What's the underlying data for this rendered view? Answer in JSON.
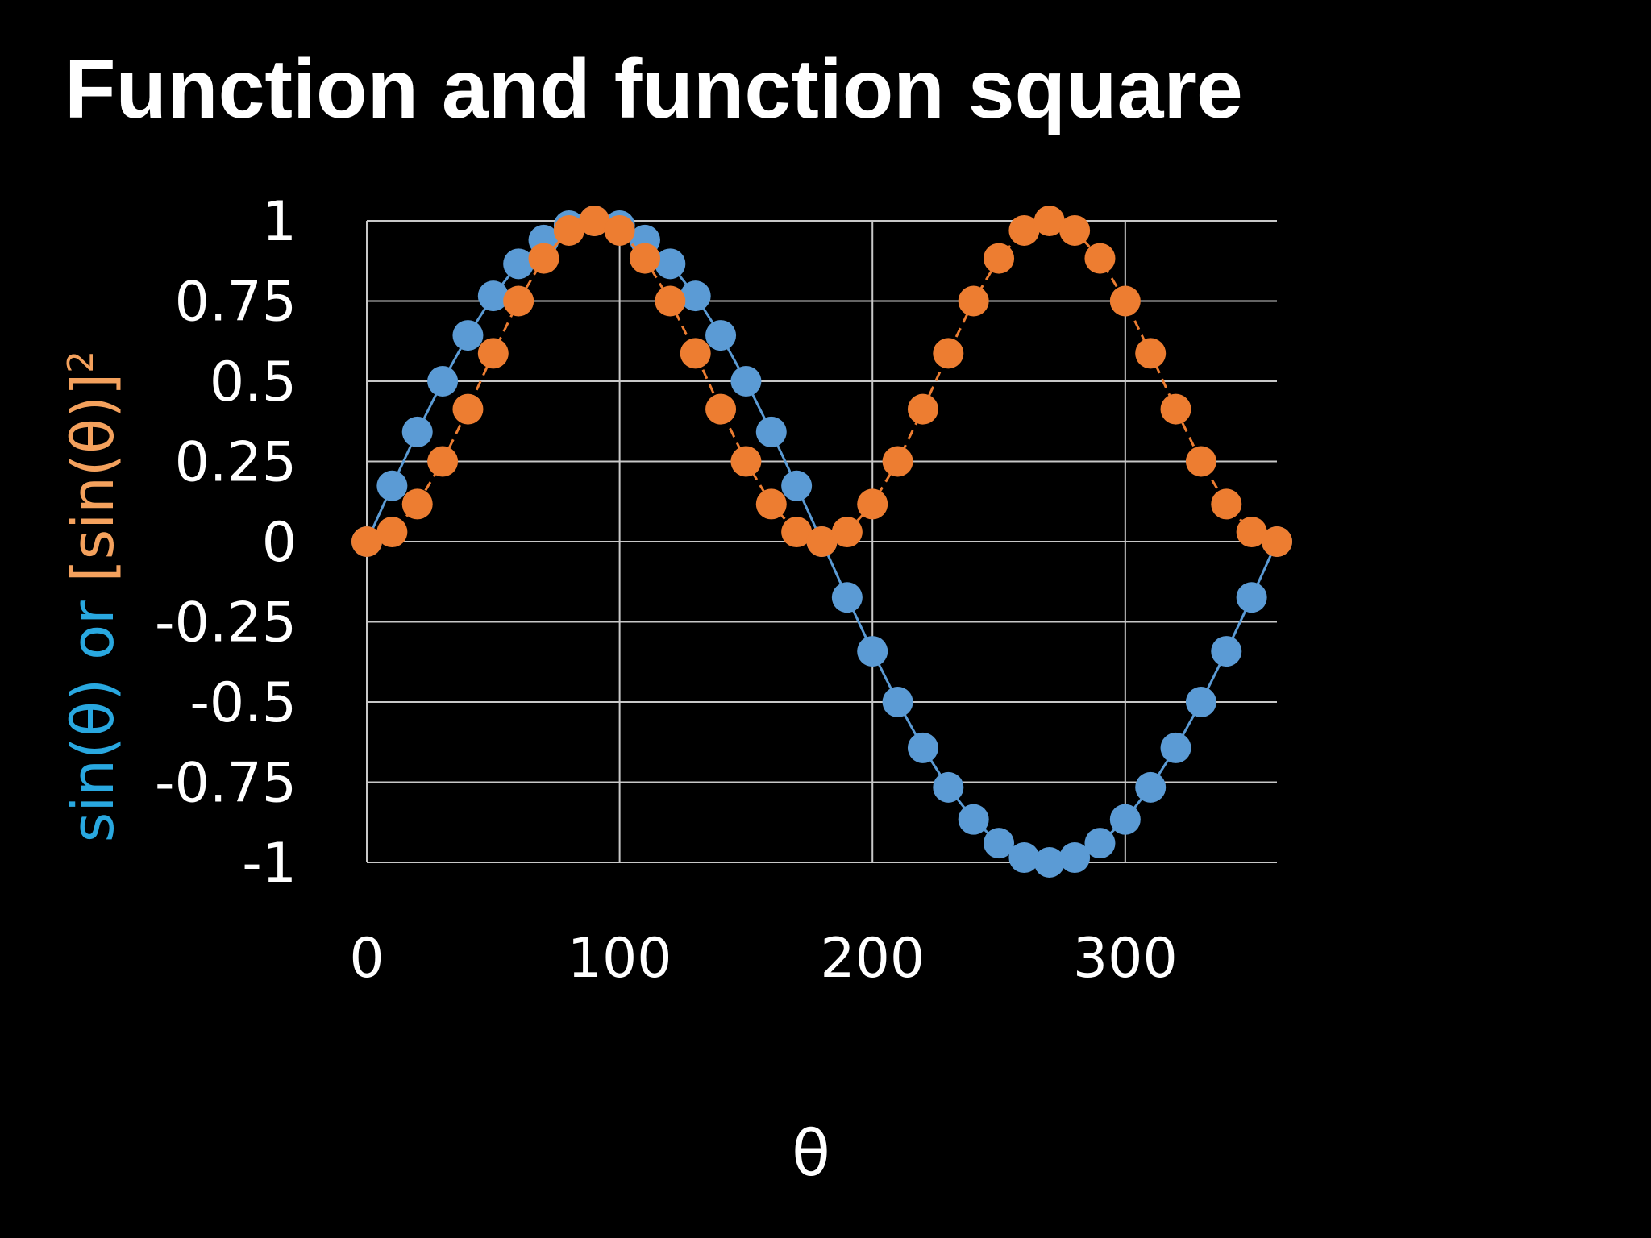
{
  "chart_data": {
    "type": "line",
    "title": "Function and function square",
    "xlabel": "θ",
    "ylabel_parts": [
      {
        "text": "sin(θ) or ",
        "color": "#29a8e0"
      },
      {
        "text": "[sin(θ)]",
        "color": "#f4a15d"
      },
      {
        "text": "2",
        "color": "#f4a15d",
        "superscript": true
      }
    ],
    "x": [
      0,
      10,
      20,
      30,
      40,
      50,
      60,
      70,
      80,
      90,
      100,
      110,
      120,
      130,
      140,
      150,
      160,
      170,
      180,
      190,
      200,
      210,
      220,
      230,
      240,
      250,
      260,
      270,
      280,
      290,
      300,
      310,
      320,
      330,
      340,
      350,
      360
    ],
    "series": [
      {
        "name": "sin(θ)",
        "color": "#5b9bd5",
        "dashed": false,
        "values": [
          0,
          0.174,
          0.342,
          0.5,
          0.643,
          0.766,
          0.866,
          0.94,
          0.985,
          1,
          0.985,
          0.94,
          0.866,
          0.766,
          0.643,
          0.5,
          0.342,
          0.174,
          0,
          -0.174,
          -0.342,
          -0.5,
          -0.643,
          -0.766,
          -0.866,
          -0.94,
          -0.985,
          -1,
          -0.985,
          -0.94,
          -0.866,
          -0.766,
          -0.643,
          -0.5,
          -0.342,
          -0.174,
          0
        ]
      },
      {
        "name": "[sin(θ)]2",
        "color": "#ed7d31",
        "dashed": true,
        "values": [
          0,
          0.03,
          0.117,
          0.25,
          0.413,
          0.587,
          0.75,
          0.883,
          0.97,
          1,
          0.97,
          0.883,
          0.75,
          0.587,
          0.413,
          0.25,
          0.117,
          0.03,
          0,
          0.03,
          0.117,
          0.25,
          0.413,
          0.587,
          0.75,
          0.883,
          0.97,
          1,
          0.97,
          0.883,
          0.75,
          0.587,
          0.413,
          0.25,
          0.117,
          0.03,
          0
        ]
      }
    ],
    "xlim": [
      0,
      360
    ],
    "xticks": [
      0,
      100,
      200,
      300
    ],
    "ylim": [
      -1,
      1
    ],
    "yticks": [
      1,
      0.75,
      0.5,
      0.25,
      0,
      -0.25,
      -0.5,
      -0.75,
      -1
    ],
    "grid": true,
    "legend": false
  }
}
